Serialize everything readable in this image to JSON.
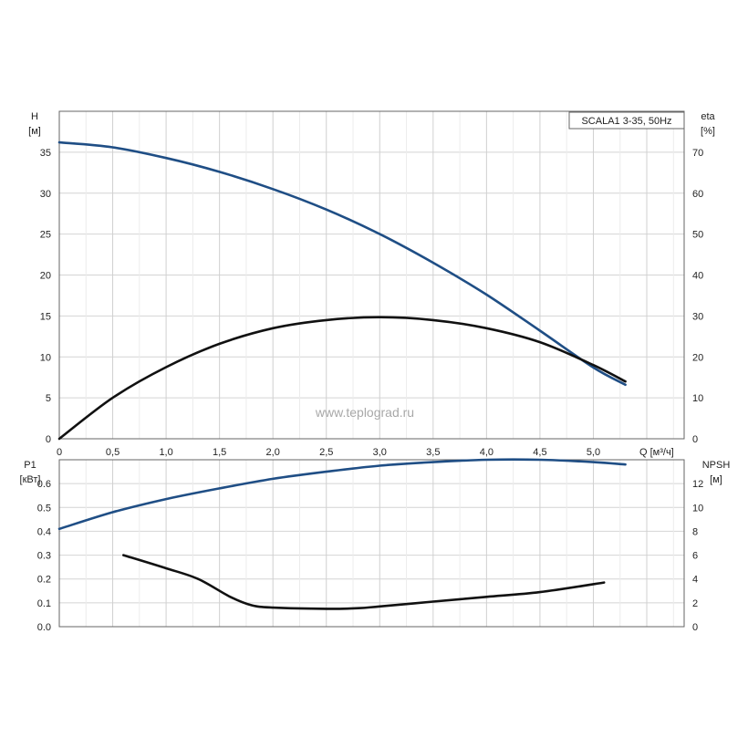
{
  "chart_data": [
    {
      "type": "line",
      "legend_box": "SCALA1 3-35, 50Hz",
      "watermark": "www.teplograd.ru",
      "left_axis": {
        "name": "H",
        "unit": "[м]",
        "range": [
          0,
          40
        ],
        "ticks": [
          "0",
          "5",
          "10",
          "15",
          "20",
          "25",
          "30",
          "35"
        ]
      },
      "right_axis": {
        "name": "eta",
        "unit": "[%]",
        "range": [
          0,
          80
        ],
        "ticks": [
          "0",
          "10",
          "20",
          "30",
          "40",
          "50",
          "60",
          "70"
        ]
      },
      "x_axis": {
        "label": "Q [м³/ч]",
        "range": [
          0,
          5.85
        ],
        "ticks": [
          "0",
          "0,5",
          "1,0",
          "1,5",
          "2,0",
          "2,5",
          "3,0",
          "3,5",
          "4,0",
          "4,5",
          "5,0"
        ]
      },
      "grid": true,
      "series": [
        {
          "axis": "left",
          "color": "#1f4e85",
          "x": [
            0,
            0.5,
            1.0,
            1.5,
            2.0,
            2.5,
            3.0,
            3.5,
            4.0,
            4.5,
            5.0,
            5.3
          ],
          "values": [
            36.2,
            35.6,
            34.3,
            32.6,
            30.5,
            28.0,
            25.0,
            21.5,
            17.6,
            13.2,
            8.7,
            6.6
          ]
        },
        {
          "axis": "right",
          "color": "#111111",
          "x": [
            0,
            0.5,
            1.0,
            1.5,
            2.0,
            2.5,
            3.0,
            3.5,
            4.0,
            4.5,
            5.0,
            5.3
          ],
          "values": [
            0,
            10.0,
            17.5,
            23.2,
            27.0,
            29.0,
            29.7,
            29.0,
            27.0,
            23.6,
            18.0,
            14.0
          ]
        }
      ]
    },
    {
      "type": "line",
      "left_axis": {
        "name": "P1",
        "unit": "[кВт]",
        "range": [
          0,
          0.7
        ],
        "ticks": [
          "0.0",
          "0.1",
          "0.2",
          "0.3",
          "0.4",
          "0.5",
          "0.6"
        ]
      },
      "right_axis": {
        "name": "NPSH",
        "unit": "[м]",
        "range": [
          0,
          14
        ],
        "ticks": [
          "0",
          "2",
          "4",
          "6",
          "8",
          "10",
          "12"
        ]
      },
      "x_axis": {
        "range": [
          0,
          5.85
        ]
      },
      "grid": true,
      "series": [
        {
          "axis": "left",
          "color": "#1f4e85",
          "x": [
            0,
            0.5,
            1.0,
            1.5,
            2.0,
            2.5,
            3.0,
            3.5,
            4.0,
            4.5,
            5.0,
            5.3
          ],
          "values": [
            0.41,
            0.48,
            0.535,
            0.58,
            0.62,
            0.65,
            0.675,
            0.69,
            0.7,
            0.7,
            0.69,
            0.68
          ]
        },
        {
          "axis": "right",
          "color": "#111111",
          "x": [
            0.6,
            1.0,
            1.3,
            1.6,
            1.8,
            2.0,
            2.5,
            2.8,
            3.0,
            3.5,
            4.0,
            4.5,
            5.1
          ],
          "values": [
            6.0,
            4.9,
            4.0,
            2.5,
            1.8,
            1.6,
            1.5,
            1.55,
            1.7,
            2.1,
            2.5,
            2.9,
            3.7
          ]
        }
      ]
    }
  ]
}
